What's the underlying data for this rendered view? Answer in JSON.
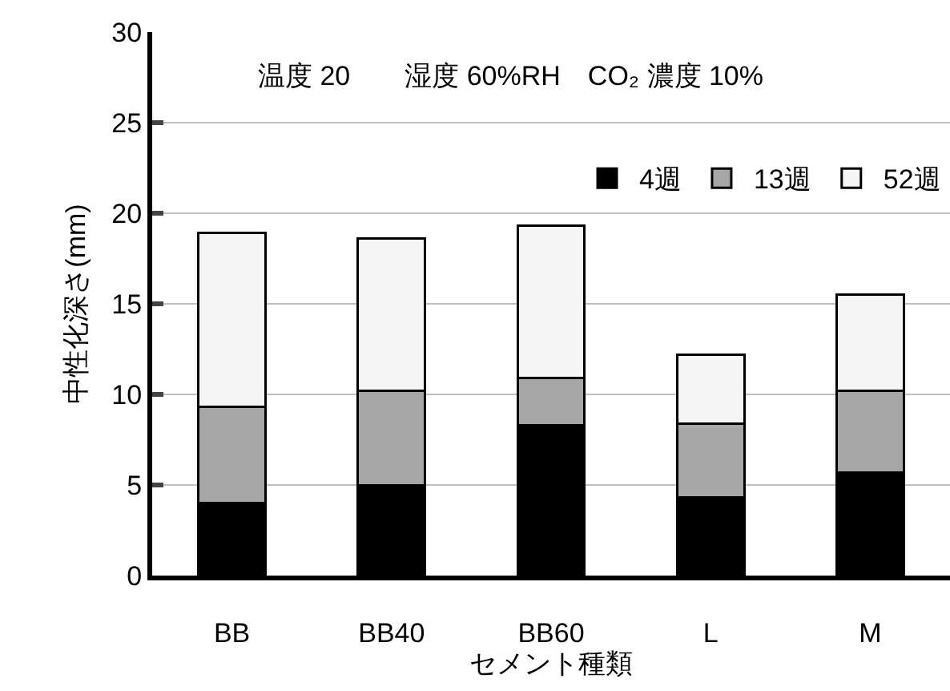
{
  "chart_data": {
    "type": "bar",
    "stacked": true,
    "xlabel": "セメント種類",
    "ylabel": "中性化深さ(mm)",
    "categories": [
      "BB",
      "BB40",
      "BB60",
      "L",
      "M"
    ],
    "series": [
      {
        "name": "4週",
        "color": "#000000",
        "values": [
          4.0,
          5.0,
          8.3,
          4.3,
          5.7
        ]
      },
      {
        "name": "13週",
        "color": "#a6a6a6",
        "values": [
          5.3,
          5.2,
          2.6,
          4.1,
          4.5
        ]
      },
      {
        "name": "52週",
        "color": "#f5f5f5",
        "values": [
          9.6,
          8.4,
          8.4,
          3.8,
          5.3
        ]
      }
    ],
    "ylim": [
      0,
      30
    ],
    "yticks": [
      0,
      5,
      10,
      15,
      20,
      25,
      30
    ],
    "grid": "y",
    "legend": "top right",
    "annotations": [
      "温度 20　　湿度 60%RH　CO₂ 濃度 10%"
    ]
  }
}
